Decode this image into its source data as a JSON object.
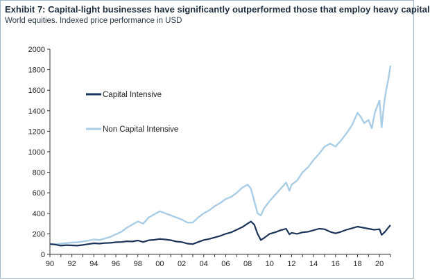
{
  "header": {
    "title": "Exhibit 7: Capital-light businesses have significantly outperformed those that employ heavy capital",
    "subtitle": "World equities. Indexed price performance in USD"
  },
  "colors": {
    "capital_intensive": "#1b3358",
    "non_capital_intensive": "#a9cde6",
    "axis": "#333333"
  },
  "chart_data": {
    "type": "line",
    "title": "Exhibit 7: Capital-light businesses have significantly outperformed those that employ heavy capital",
    "subtitle": "World equities. Indexed price performance in USD",
    "xlabel": "",
    "ylabel": "",
    "xlim": [
      1990,
      2021
    ],
    "ylim": [
      0,
      2000
    ],
    "x_tick_values": [
      1990,
      1992,
      1994,
      1996,
      1998,
      2000,
      2002,
      2004,
      2006,
      2008,
      2010,
      2012,
      2014,
      2016,
      2018,
      2020
    ],
    "x_tick_labels": [
      "90",
      "92",
      "94",
      "96",
      "98",
      "00",
      "02",
      "04",
      "06",
      "08",
      "10",
      "12",
      "14",
      "16",
      "18",
      "20"
    ],
    "y_ticks": [
      0,
      200,
      400,
      600,
      800,
      1000,
      1200,
      1400,
      1600,
      1800,
      2000
    ],
    "grid": false,
    "legend_position": "upper-left",
    "series": [
      {
        "name": "Capital Intensive",
        "color": "#1b3358",
        "x": [
          1990.0,
          1990.5,
          1991.0,
          1991.5,
          1992.0,
          1992.5,
          1993.0,
          1993.5,
          1994.0,
          1994.5,
          1995.0,
          1995.5,
          1996.0,
          1996.5,
          1997.0,
          1997.5,
          1998.0,
          1998.5,
          1999.0,
          1999.5,
          2000.0,
          2000.5,
          2001.0,
          2001.5,
          2002.0,
          2002.5,
          2003.0,
          2003.5,
          2004.0,
          2004.5,
          2005.0,
          2005.5,
          2006.0,
          2006.5,
          2007.0,
          2007.5,
          2008.0,
          2008.3,
          2008.6,
          2008.9,
          2009.2,
          2009.5,
          2010.0,
          2010.5,
          2011.0,
          2011.5,
          2011.8,
          2012.0,
          2012.5,
          2013.0,
          2013.5,
          2014.0,
          2014.5,
          2015.0,
          2015.5,
          2016.0,
          2016.5,
          2017.0,
          2017.5,
          2018.0,
          2018.5,
          2019.0,
          2019.5,
          2020.0,
          2020.2,
          2020.5,
          2020.8,
          2021.0
        ],
        "y": [
          100,
          95,
          85,
          90,
          88,
          85,
          92,
          100,
          108,
          105,
          110,
          112,
          118,
          120,
          128,
          125,
          135,
          120,
          138,
          142,
          150,
          145,
          138,
          125,
          120,
          105,
          100,
          120,
          140,
          150,
          165,
          180,
          200,
          215,
          240,
          265,
          300,
          320,
          290,
          200,
          140,
          160,
          200,
          215,
          235,
          250,
          195,
          210,
          200,
          215,
          220,
          235,
          250,
          245,
          220,
          205,
          220,
          240,
          255,
          270,
          260,
          250,
          240,
          245,
          190,
          220,
          260,
          285
        ]
      },
      {
        "name": "Non Capital Intensive",
        "color": "#a9cde6",
        "x": [
          1990.0,
          1990.5,
          1991.0,
          1991.5,
          1992.0,
          1992.5,
          1993.0,
          1993.5,
          1994.0,
          1994.5,
          1995.0,
          1995.5,
          1996.0,
          1996.5,
          1997.0,
          1997.5,
          1998.0,
          1998.5,
          1999.0,
          1999.5,
          2000.0,
          2000.5,
          2001.0,
          2001.5,
          2002.0,
          2002.5,
          2003.0,
          2003.5,
          2004.0,
          2004.5,
          2005.0,
          2005.5,
          2006.0,
          2006.5,
          2007.0,
          2007.5,
          2008.0,
          2008.3,
          2008.6,
          2008.9,
          2009.2,
          2009.5,
          2010.0,
          2010.5,
          2011.0,
          2011.5,
          2011.8,
          2012.0,
          2012.5,
          2013.0,
          2013.5,
          2014.0,
          2014.5,
          2015.0,
          2015.5,
          2016.0,
          2016.5,
          2017.0,
          2017.5,
          2018.0,
          2018.3,
          2018.6,
          2019.0,
          2019.3,
          2019.6,
          2020.0,
          2020.2,
          2020.4,
          2020.6,
          2020.8,
          2021.0
        ],
        "y": [
          100,
          98,
          105,
          110,
          115,
          118,
          125,
          135,
          145,
          140,
          155,
          170,
          195,
          220,
          260,
          290,
          320,
          300,
          360,
          390,
          420,
          400,
          380,
          360,
          340,
          310,
          310,
          360,
          400,
          430,
          470,
          500,
          540,
          560,
          600,
          650,
          680,
          640,
          520,
          400,
          380,
          450,
          520,
          580,
          640,
          700,
          620,
          680,
          720,
          800,
          850,
          920,
          980,
          1050,
          1080,
          1050,
          1110,
          1180,
          1260,
          1380,
          1340,
          1280,
          1310,
          1230,
          1390,
          1500,
          1240,
          1450,
          1600,
          1700,
          1840
        ]
      }
    ]
  }
}
